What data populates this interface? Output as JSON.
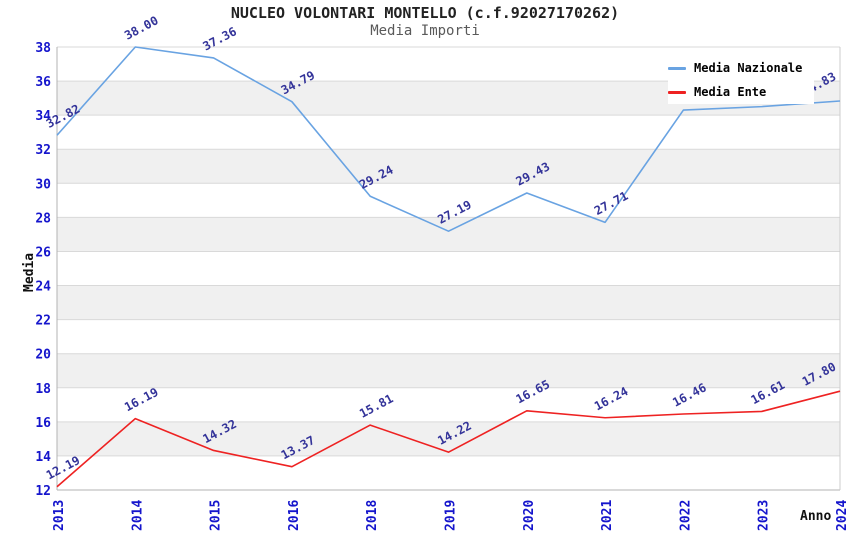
{
  "title": "NUCLEO VOLONTARI MONTELLO (c.f.92027170262)",
  "subtitle": "Media Importi",
  "legend": {
    "position": "top-right",
    "items": [
      {
        "label": "Media Nazionale",
        "color": "#69a3e2"
      },
      {
        "label": "Media Ente",
        "color": "#ee2222"
      }
    ]
  },
  "axes": {
    "y_title": "Media",
    "x_title": "Anno",
    "tick_color": "#1515cc",
    "point_label_color": "#333399"
  },
  "colors": {
    "band_gray": "#f0f0f0",
    "grid_line": "#d9d9d9",
    "axis_line": "#b3b3b3",
    "right_edge": "#cccccc"
  },
  "chart_data": {
    "type": "line",
    "title": "NUCLEO VOLONTARI MONTELLO (c.f.92027170262)",
    "subtitle": "Media Importi",
    "xlabel": "Anno",
    "ylabel": "Media",
    "categories": [
      "2013",
      "2014",
      "2015",
      "2016",
      "2018",
      "2019",
      "2020",
      "2021",
      "2022",
      "2023",
      "2024"
    ],
    "ylim": [
      12,
      38
    ],
    "ytick_step": 2,
    "grid": "horizontal gridlines with alternating white/gray bands",
    "legend_position": "top-right inside plot",
    "series": [
      {
        "name": "Media Nazionale",
        "color": "#69a3e2",
        "values": [
          32.82,
          38.0,
          37.36,
          34.79,
          29.24,
          27.19,
          29.43,
          27.71,
          34.3,
          34.5,
          34.83
        ],
        "point_labels": [
          "32.82",
          "38.00",
          "37.36",
          "34.79",
          "29.24",
          "27.19",
          "29.43",
          "27.71",
          "",
          "",
          "34.83"
        ]
      },
      {
        "name": "Media Ente",
        "color": "#ee2222",
        "values": [
          12.19,
          16.19,
          14.32,
          13.37,
          15.81,
          14.22,
          16.65,
          16.24,
          16.46,
          16.61,
          17.8
        ],
        "point_labels": [
          "12.19",
          "16.19",
          "14.32",
          "13.37",
          "15.81",
          "14.22",
          "16.65",
          "16.24",
          "16.46",
          "16.61",
          "17.80"
        ]
      }
    ]
  }
}
